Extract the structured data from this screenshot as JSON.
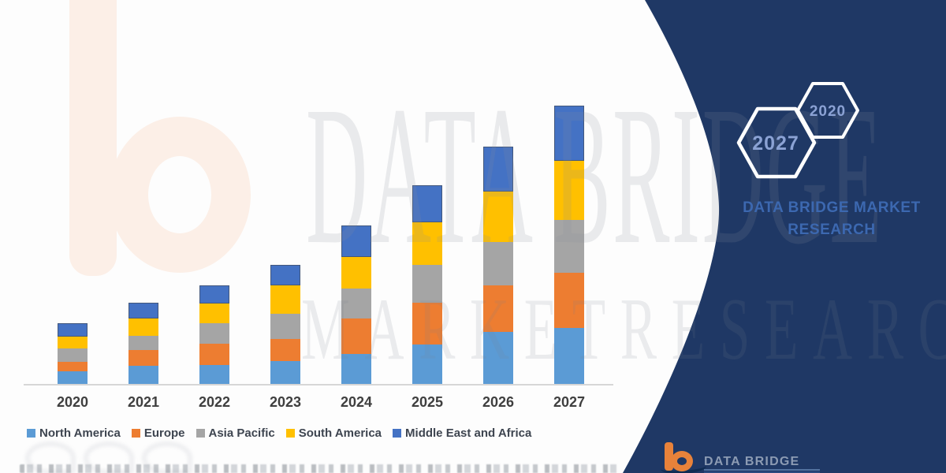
{
  "watermarks": {
    "line1": "DATA BRIDGE",
    "line2": "MARKETRESEARCH"
  },
  "side_panel": {
    "hexagons": [
      {
        "label": "2027"
      },
      {
        "label": "2020"
      }
    ],
    "brand_line1": "DATA BRIDGE MARKET",
    "brand_line2": "RESEARCH",
    "colors": {
      "panel_navy": "#1f3865",
      "hexagon_stroke": "#ffffff",
      "hexagon_text": "#8ba2d4",
      "brand_text": "#3c68b0"
    }
  },
  "footer_logo": {
    "brand_text": "DATA BRIDGE",
    "icon_color": "#e8823a"
  },
  "chart_data": {
    "type": "bar",
    "stacked": true,
    "title": "",
    "xlabel": "",
    "ylabel": "",
    "y_axis_visible": false,
    "grid": false,
    "legend_position": "bottom",
    "note": "No value axis shown in source image; values are relative units measured from bar segment heights (1 unit = 1 px).",
    "categories": [
      "2020",
      "2021",
      "2022",
      "2023",
      "2024",
      "2025",
      "2026",
      "2027"
    ],
    "series": [
      {
        "name": "North America",
        "color": "#5B9BD5",
        "outlined": false,
        "values": [
          16,
          23,
          24,
          29,
          38,
          50,
          66,
          71
        ]
      },
      {
        "name": "Europe",
        "color": "#ED7D31",
        "outlined": false,
        "values": [
          12,
          20,
          27,
          28,
          45,
          53,
          59,
          70
        ]
      },
      {
        "name": "Asia Pacific",
        "color": "#A5A5A5",
        "outlined": false,
        "values": [
          17,
          18,
          26,
          32,
          38,
          48,
          55,
          67
        ]
      },
      {
        "name": "South America",
        "color": "#FFC000",
        "outlined": false,
        "values": [
          15,
          22,
          25,
          36,
          40,
          54,
          64,
          75
        ]
      },
      {
        "name": "Middle East and Africa",
        "color": "#4472C4",
        "outlined": true,
        "values": [
          17,
          20,
          23,
          26,
          40,
          47,
          57,
          70
        ]
      }
    ],
    "totals": [
      77,
      103,
      125,
      151,
      201,
      252,
      301,
      353
    ]
  }
}
